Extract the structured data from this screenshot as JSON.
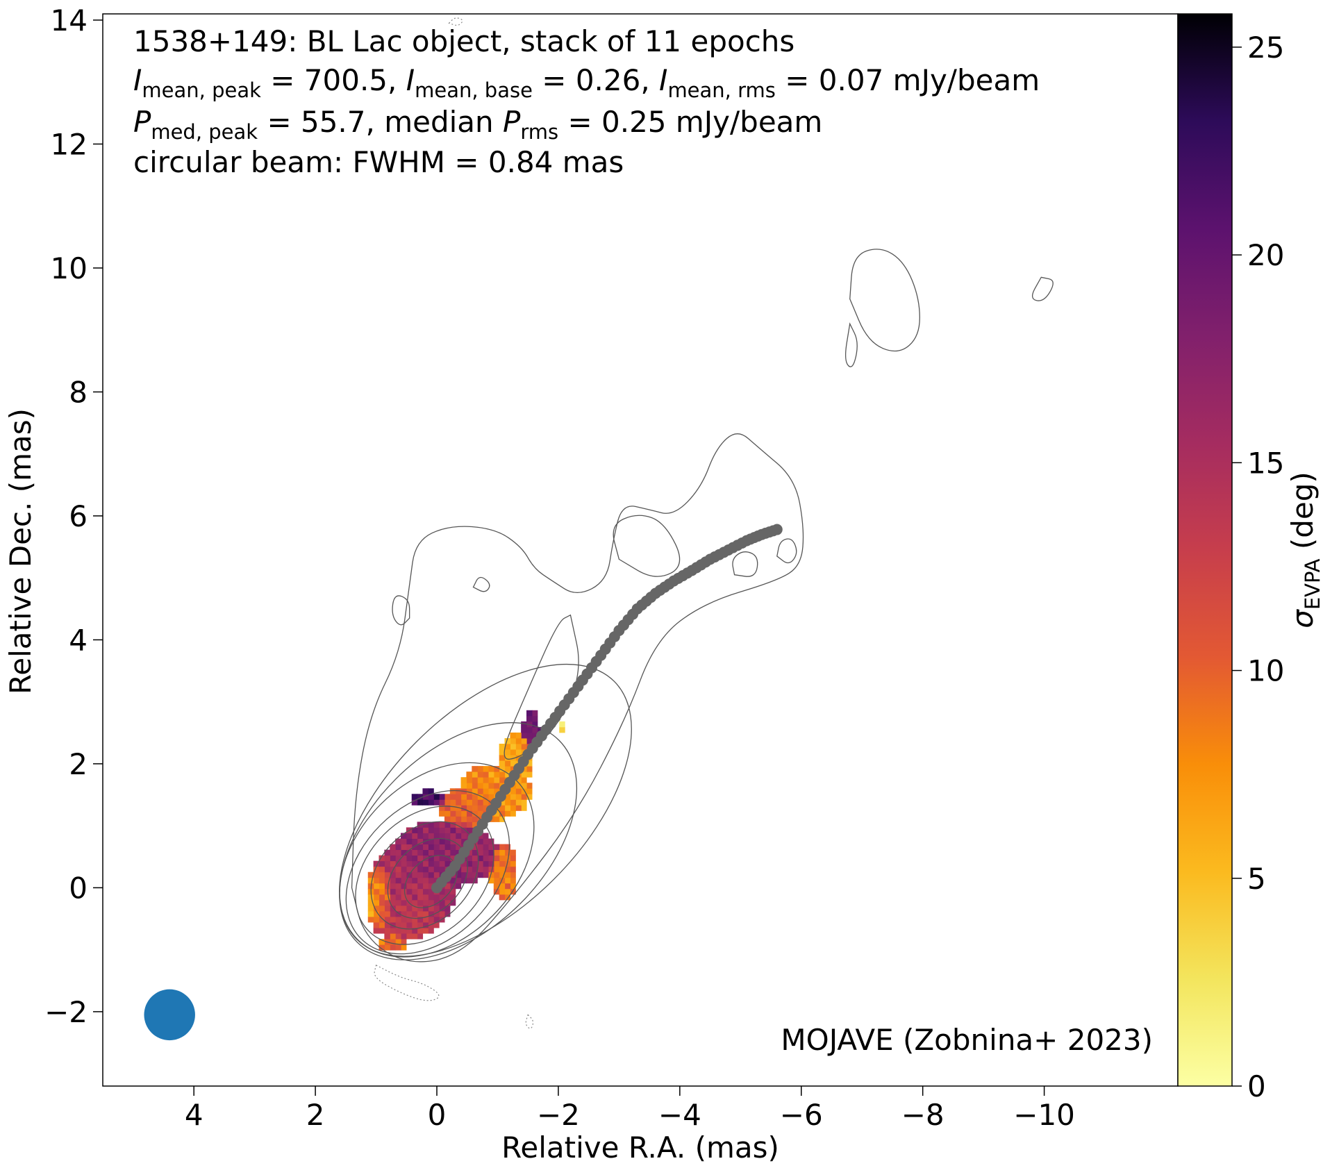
{
  "chart_data": {
    "type": "heatmap",
    "title_lines": [
      {
        "parts": [
          {
            "t": "1538+149: BL Lac object, stack of 11 epochs"
          }
        ]
      },
      {
        "parts": [
          {
            "t": "I",
            "style": "italic"
          },
          {
            "t": "mean, peak",
            "style": "sub"
          },
          {
            "t": " = 700.5, "
          },
          {
            "t": "I",
            "style": "italic"
          },
          {
            "t": "mean, base",
            "style": "sub"
          },
          {
            "t": " = 0.26, "
          },
          {
            "t": "I",
            "style": "italic"
          },
          {
            "t": "mean, rms",
            "style": "sub"
          },
          {
            "t": " = 0.07 mJy/beam"
          }
        ]
      },
      {
        "parts": [
          {
            "t": "P",
            "style": "italic"
          },
          {
            "t": "med, peak",
            "style": "sub"
          },
          {
            "t": " = 55.7, median "
          },
          {
            "t": "P",
            "style": "italic"
          },
          {
            "t": "rms",
            "style": "sub"
          },
          {
            "t": " = 0.25 mJy/beam"
          }
        ]
      },
      {
        "parts": [
          {
            "t": "circular beam: FWHM = 0.84 mas"
          }
        ]
      }
    ],
    "credit": "MOJAVE (Zobnina+ 2023)",
    "xlabel": "Relative R.A. (mas)",
    "ylabel": "Relative Dec. (mas)",
    "colorbar_label": {
      "symbol": "σ",
      "sub": "EVPA",
      "unit": " (deg)"
    },
    "xlim": [
      5.5,
      -12.2
    ],
    "ylim": [
      -3.2,
      14.1
    ],
    "x_ticks": [
      4,
      2,
      0,
      -2,
      -4,
      -6,
      -8,
      -10
    ],
    "x_tick_labels": [
      "4",
      "2",
      "0",
      "−2",
      "−4",
      "−6",
      "−8",
      "−10"
    ],
    "y_ticks": [
      -2,
      0,
      2,
      4,
      6,
      8,
      10,
      12,
      14
    ],
    "y_tick_labels": [
      "−2",
      "0",
      "2",
      "4",
      "6",
      "8",
      "10",
      "12",
      "14"
    ],
    "colorbar_range": [
      0,
      25.8
    ],
    "colorbar_ticks": [
      0,
      5,
      10,
      15,
      20,
      25
    ],
    "colorbar_tick_labels": [
      "0",
      "5",
      "10",
      "15",
      "20",
      "25"
    ],
    "colormap": "inferno_r",
    "beam": {
      "x": 4.4,
      "y": -2.05,
      "fwhm_mas": 0.84,
      "color": "#1f77b4"
    },
    "ridge_line": {
      "color": "#666666",
      "points": [
        [
          0.0,
          0.0
        ],
        [
          -0.3,
          0.35
        ],
        [
          -0.6,
          0.8
        ],
        [
          -0.9,
          1.25
        ],
        [
          -1.2,
          1.7
        ],
        [
          -1.5,
          2.15
        ],
        [
          -1.8,
          2.55
        ],
        [
          -2.1,
          2.95
        ],
        [
          -2.4,
          3.35
        ],
        [
          -2.7,
          3.75
        ],
        [
          -3.0,
          4.15
        ],
        [
          -3.3,
          4.5
        ],
        [
          -3.6,
          4.75
        ],
        [
          -3.9,
          4.95
        ],
        [
          -4.2,
          5.12
        ],
        [
          -4.5,
          5.3
        ],
        [
          -4.8,
          5.45
        ],
        [
          -5.1,
          5.6
        ],
        [
          -5.35,
          5.7
        ],
        [
          -5.6,
          5.78
        ]
      ]
    },
    "contours": {
      "color": "#555555",
      "core_ellipses": [
        {
          "x": 0.1,
          "y": 0.1,
          "a": 0.5,
          "b": 0.35,
          "angle_deg": -45
        },
        {
          "x": 0.15,
          "y": 0.15,
          "a": 0.75,
          "b": 0.55,
          "angle_deg": -45
        },
        {
          "x": 0.2,
          "y": 0.2,
          "a": 1.0,
          "b": 0.75,
          "angle_deg": -45
        },
        {
          "x": 0.2,
          "y": 0.2,
          "a": 1.3,
          "b": 0.95,
          "angle_deg": -45
        },
        {
          "x": 0.15,
          "y": 0.25,
          "a": 1.55,
          "b": 1.1,
          "angle_deg": -45
        },
        {
          "x": 0.0,
          "y": 0.45,
          "a": 1.85,
          "b": 1.3,
          "angle_deg": -45
        },
        {
          "x": -0.35,
          "y": 0.75,
          "a": 2.35,
          "b": 1.45,
          "angle_deg": -45
        },
        {
          "x": -0.8,
          "y": 1.25,
          "a": 3.0,
          "b": 1.6,
          "angle_deg": -45
        }
      ],
      "jet_contours": [
        [
          [
            1.4,
            0.0
          ],
          [
            1.2,
            -0.8
          ],
          [
            0.5,
            -1.25
          ],
          [
            -0.4,
            -1.1
          ],
          [
            -1.3,
            -0.1
          ],
          [
            -2.3,
            1.2
          ],
          [
            -3.1,
            2.7
          ],
          [
            -3.6,
            4.0
          ],
          [
            -4.4,
            4.6
          ],
          [
            -5.6,
            4.95
          ],
          [
            -6.0,
            5.2
          ],
          [
            -6.05,
            5.8
          ],
          [
            -5.9,
            6.6
          ],
          [
            -5.3,
            7.1
          ],
          [
            -4.95,
            7.4
          ],
          [
            -4.6,
            7.1
          ],
          [
            -4.35,
            6.45
          ],
          [
            -3.9,
            6.0
          ],
          [
            -3.5,
            6.1
          ],
          [
            -3.05,
            6.2
          ],
          [
            -2.9,
            5.6
          ],
          [
            -2.8,
            4.95
          ],
          [
            -2.3,
            4.7
          ],
          [
            -1.9,
            4.95
          ],
          [
            -1.6,
            5.15
          ],
          [
            -1.4,
            5.5
          ],
          [
            -0.95,
            5.8
          ],
          [
            -0.2,
            5.85
          ],
          [
            0.35,
            5.6
          ],
          [
            0.45,
            4.9
          ],
          [
            0.6,
            3.8
          ],
          [
            1.1,
            2.8
          ],
          [
            1.35,
            1.5
          ],
          [
            1.4,
            0.0
          ]
        ],
        [
          [
            -3.0,
            5.3
          ],
          [
            -2.85,
            5.85
          ],
          [
            -3.3,
            6.05
          ],
          [
            -3.75,
            5.9
          ],
          [
            -4.1,
            5.2
          ],
          [
            -3.6,
            4.95
          ],
          [
            -3.0,
            5.3
          ]
        ],
        [
          [
            -2.2,
            4.4
          ],
          [
            -2.4,
            3.5
          ],
          [
            -2.0,
            2.6
          ],
          [
            -1.4,
            2.1
          ],
          [
            -1.0,
            2.05
          ],
          [
            -1.5,
            3.2
          ],
          [
            -2.0,
            4.3
          ],
          [
            -2.2,
            4.4
          ]
        ]
      ],
      "islands": [
        [
          [
            -6.8,
            9.5
          ],
          [
            -6.85,
            10.2
          ],
          [
            -7.3,
            10.35
          ],
          [
            -7.7,
            10.1
          ],
          [
            -7.95,
            9.5
          ],
          [
            -7.95,
            8.9
          ],
          [
            -7.6,
            8.6
          ],
          [
            -7.1,
            8.8
          ],
          [
            -6.8,
            9.5
          ]
        ],
        [
          [
            -6.8,
            9.1
          ],
          [
            -6.95,
            8.8
          ],
          [
            -6.85,
            8.35
          ],
          [
            -6.7,
            8.5
          ],
          [
            -6.8,
            9.1
          ]
        ],
        [
          [
            -9.95,
            9.85
          ],
          [
            -10.2,
            9.8
          ],
          [
            -10.0,
            9.45
          ],
          [
            -9.75,
            9.5
          ],
          [
            -9.95,
            9.85
          ]
        ],
        [
          [
            -4.9,
            5.05
          ],
          [
            -5.25,
            5.0
          ],
          [
            -5.3,
            5.35
          ],
          [
            -5.05,
            5.45
          ],
          [
            -4.85,
            5.3
          ],
          [
            -4.9,
            5.05
          ]
        ],
        [
          [
            -5.6,
            5.35
          ],
          [
            -5.8,
            5.2
          ],
          [
            -5.95,
            5.4
          ],
          [
            -5.85,
            5.65
          ],
          [
            -5.65,
            5.6
          ],
          [
            -5.6,
            5.35
          ]
        ],
        [
          [
            0.45,
            4.35
          ],
          [
            0.6,
            4.2
          ],
          [
            0.75,
            4.4
          ],
          [
            0.7,
            4.75
          ],
          [
            0.45,
            4.65
          ],
          [
            0.45,
            4.35
          ]
        ],
        [
          [
            -0.6,
            4.85
          ],
          [
            -0.8,
            4.75
          ],
          [
            -0.9,
            4.9
          ],
          [
            -0.7,
            5.05
          ],
          [
            -0.6,
            4.85
          ]
        ]
      ],
      "dotted_contours": [
        [
          [
            1.0,
            -1.25
          ],
          [
            0.6,
            -1.45
          ],
          [
            0.2,
            -1.55
          ],
          [
            -0.1,
            -1.75
          ],
          [
            0.15,
            -1.85
          ],
          [
            0.6,
            -1.7
          ],
          [
            1.05,
            -1.45
          ],
          [
            1.0,
            -1.25
          ]
        ],
        [
          [
            -1.5,
            -2.05
          ],
          [
            -1.6,
            -2.15
          ],
          [
            -1.55,
            -2.3
          ],
          [
            -1.45,
            -2.2
          ],
          [
            -1.5,
            -2.05
          ]
        ],
        [
          [
            -0.2,
            13.95
          ],
          [
            -0.3,
            14.05
          ],
          [
            -0.45,
            14.0
          ],
          [
            -0.35,
            13.9
          ],
          [
            -0.2,
            13.95
          ]
        ]
      ]
    },
    "sigma_evpa_map": {
      "cell_mas": 0.09,
      "regions": [
        {
          "x": 0.4,
          "y": 0.0,
          "rx": 0.72,
          "ry": 0.75,
          "value": 15.5
        },
        {
          "x": -0.15,
          "y": 0.55,
          "rx": 0.85,
          "ry": 0.55,
          "value": 17.0
        },
        {
          "x": 0.55,
          "y": -0.5,
          "rx": 0.55,
          "ry": 0.35,
          "value": 13.0
        },
        {
          "x": 0.95,
          "y": -0.15,
          "rx": 0.22,
          "ry": 0.5,
          "value": 6.0
        },
        {
          "x": -0.95,
          "y": 1.55,
          "rx": 0.6,
          "ry": 0.45,
          "value": 7.5
        },
        {
          "x": -0.5,
          "y": 1.3,
          "rx": 0.45,
          "ry": 0.35,
          "value": 10.5
        },
        {
          "x": -1.3,
          "y": 2.05,
          "rx": 0.3,
          "ry": 0.45,
          "value": 7.0
        },
        {
          "x": -1.1,
          "y": 0.25,
          "rx": 0.22,
          "ry": 0.45,
          "value": 9.0
        },
        {
          "x": 0.15,
          "y": 1.45,
          "rx": 0.3,
          "ry": 0.12,
          "value": 22.0
        },
        {
          "x": -1.55,
          "y": 2.55,
          "rx": 0.15,
          "ry": 0.3,
          "value": 19.0
        },
        {
          "x": -2.1,
          "y": 2.6,
          "rx": 0.05,
          "ry": 0.15,
          "value": 2.0
        },
        {
          "x": 0.75,
          "y": -0.9,
          "rx": 0.25,
          "ry": 0.15,
          "value": 9.5
        }
      ]
    }
  }
}
